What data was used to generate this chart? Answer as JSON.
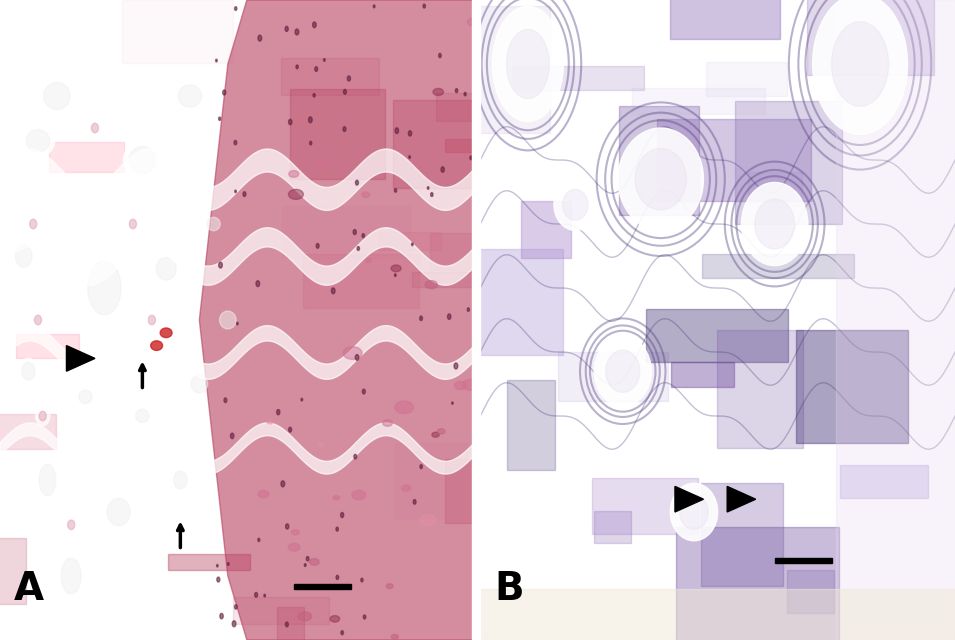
{
  "figure_width": 9.55,
  "figure_height": 6.4,
  "dpi": 100,
  "background_color": "#ffffff",
  "panel_A": {
    "label": "A",
    "label_fontsize": 28,
    "label_color": "#000000",
    "label_weight": "bold",
    "bg_color": "#d4607a",
    "dark_region_color": "#b84060",
    "stripe_color": "#ffffff",
    "nucleus_color": "#602040",
    "blood_color": "#cc2020"
  },
  "panel_B": {
    "label": "B",
    "label_fontsize": 28,
    "label_color": "#000000",
    "label_weight": "bold",
    "bg_color": "#8060a8",
    "ring_color": "#504080",
    "light_area_color": "#e8d8f0",
    "bottom_color": "#f0e8d8"
  },
  "divider_color": "#ffffff",
  "scale_bar_color": "#000000"
}
